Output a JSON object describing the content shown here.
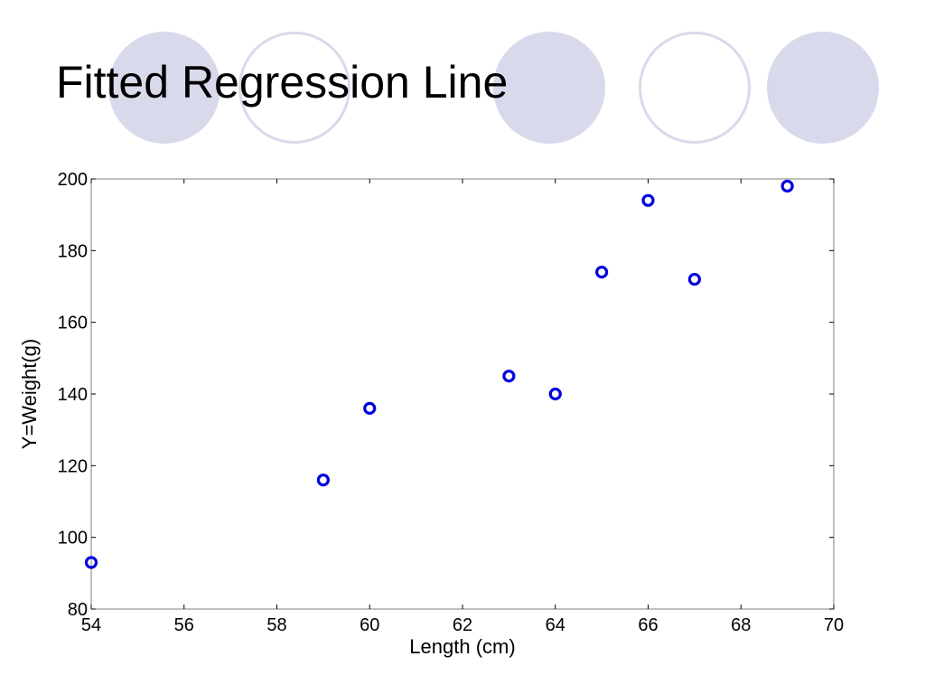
{
  "slide": {
    "title": "Fitted Regression Line"
  },
  "decorations": [
    {
      "name": "decor-circle-filled-1",
      "style": "filled"
    },
    {
      "name": "decor-circle-ring-1",
      "style": "ring"
    },
    {
      "name": "decor-circle-filled-2",
      "style": "filled"
    },
    {
      "name": "decor-circle-ring-2",
      "style": "ring"
    },
    {
      "name": "decor-circle-filled-3",
      "style": "filled"
    }
  ],
  "colors": {
    "accent_circle": "#d9d9ec",
    "marker": "#0000dd",
    "axis": "#000000"
  },
  "chart_data": {
    "type": "scatter",
    "title": "",
    "xlabel": "Length (cm)",
    "ylabel": "Y=Weight(g)",
    "xlim": [
      54,
      70
    ],
    "ylim": [
      80,
      200
    ],
    "xticks": [
      54,
      56,
      58,
      60,
      62,
      64,
      66,
      68,
      70
    ],
    "yticks": [
      80,
      100,
      120,
      140,
      160,
      180,
      200
    ],
    "grid": false,
    "marker": "open-circle",
    "series": [
      {
        "x": [
          54,
          59,
          60,
          63,
          64,
          65,
          66,
          67,
          69
        ],
        "y": [
          93,
          116,
          136,
          145,
          140,
          174,
          194,
          172,
          198
        ]
      }
    ]
  }
}
